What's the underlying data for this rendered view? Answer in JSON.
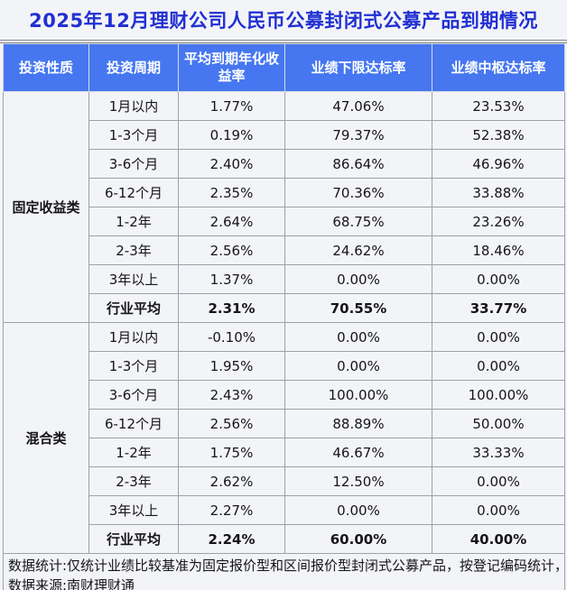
{
  "colors": {
    "page_bg": "#f3f4f8",
    "title_color": "#2130d2",
    "header_bg": "#4677f0",
    "header_text": "#ffffff",
    "cell_text": "#15151a"
  },
  "title": {
    "text": "2025年12月理财公司人民币公募封闭式公募产品到期情况"
  },
  "table": {
    "columns": [
      "投资性质",
      "投资周期",
      "平均到期年化收益率",
      "业绩下限达标率",
      "业绩中枢达标率"
    ],
    "sections": [
      {
        "category": "固定收益类",
        "rows": [
          {
            "period": "1月以内",
            "avg_yield": "1.77%",
            "lower_rate": "47.06%",
            "mid_rate": "23.53%",
            "bold": false
          },
          {
            "period": "1-3个月",
            "avg_yield": "0.19%",
            "lower_rate": "79.37%",
            "mid_rate": "52.38%",
            "bold": false
          },
          {
            "period": "3-6个月",
            "avg_yield": "2.40%",
            "lower_rate": "86.64%",
            "mid_rate": "46.96%",
            "bold": false
          },
          {
            "period": "6-12个月",
            "avg_yield": "2.35%",
            "lower_rate": "70.36%",
            "mid_rate": "33.88%",
            "bold": false
          },
          {
            "period": "1-2年",
            "avg_yield": "2.64%",
            "lower_rate": "68.75%",
            "mid_rate": "23.26%",
            "bold": false
          },
          {
            "period": "2-3年",
            "avg_yield": "2.56%",
            "lower_rate": "24.62%",
            "mid_rate": "18.46%",
            "bold": false
          },
          {
            "period": "3年以上",
            "avg_yield": "1.37%",
            "lower_rate": "0.00%",
            "mid_rate": "0.00%",
            "bold": false
          },
          {
            "period": "行业平均",
            "avg_yield": "2.31%",
            "lower_rate": "70.55%",
            "mid_rate": "33.77%",
            "bold": true
          }
        ]
      },
      {
        "category": "混合类",
        "rows": [
          {
            "period": "1月以内",
            "avg_yield": "-0.10%",
            "lower_rate": "0.00%",
            "mid_rate": "0.00%",
            "bold": false
          },
          {
            "period": "1-3个月",
            "avg_yield": "1.95%",
            "lower_rate": "0.00%",
            "mid_rate": "0.00%",
            "bold": false
          },
          {
            "period": "3-6个月",
            "avg_yield": "2.43%",
            "lower_rate": "100.00%",
            "mid_rate": "100.00%",
            "bold": false
          },
          {
            "period": "6-12个月",
            "avg_yield": "2.56%",
            "lower_rate": "88.89%",
            "mid_rate": "50.00%",
            "bold": false
          },
          {
            "period": "1-2年",
            "avg_yield": "1.75%",
            "lower_rate": "46.67%",
            "mid_rate": "33.33%",
            "bold": false
          },
          {
            "period": "2-3年",
            "avg_yield": "2.62%",
            "lower_rate": "12.50%",
            "mid_rate": "0.00%",
            "bold": false
          },
          {
            "period": "3年以上",
            "avg_yield": "2.27%",
            "lower_rate": "0.00%",
            "mid_rate": "0.00%",
            "bold": false
          },
          {
            "period": "行业平均",
            "avg_yield": "2.24%",
            "lower_rate": "60.00%",
            "mid_rate": "40.00%",
            "bold": true
          }
        ]
      }
    ]
  },
  "footer": {
    "line1": "数据统计:仅统计业绩比较基准为固定报价型和区间报价型封闭式公募产品，按登记编码统计，",
    "line2": "数据来源:南财理财通"
  },
  "chart_data": {
    "type": "table",
    "title": "2025年12月理财公司人民币公募封闭式公募产品到期情况",
    "columns": [
      "投资性质",
      "投资周期",
      "平均到期年化收益率",
      "业绩下限达标率",
      "业绩中枢达标率"
    ],
    "rows": [
      [
        "固定收益类",
        "1月以内",
        "1.77%",
        "47.06%",
        "23.53%"
      ],
      [
        "固定收益类",
        "1-3个月",
        "0.19%",
        "79.37%",
        "52.38%"
      ],
      [
        "固定收益类",
        "3-6个月",
        "2.40%",
        "86.64%",
        "46.96%"
      ],
      [
        "固定收益类",
        "6-12个月",
        "2.35%",
        "70.36%",
        "33.88%"
      ],
      [
        "固定收益类",
        "1-2年",
        "2.64%",
        "68.75%",
        "23.26%"
      ],
      [
        "固定收益类",
        "2-3年",
        "2.56%",
        "24.62%",
        "18.46%"
      ],
      [
        "固定收益类",
        "3年以上",
        "1.37%",
        "0.00%",
        "0.00%"
      ],
      [
        "固定收益类",
        "行业平均",
        "2.31%",
        "70.55%",
        "33.77%"
      ],
      [
        "混合类",
        "1月以内",
        "-0.10%",
        "0.00%",
        "0.00%"
      ],
      [
        "混合类",
        "1-3个月",
        "1.95%",
        "0.00%",
        "0.00%"
      ],
      [
        "混合类",
        "3-6个月",
        "2.43%",
        "100.00%",
        "100.00%"
      ],
      [
        "混合类",
        "6-12个月",
        "2.56%",
        "88.89%",
        "50.00%"
      ],
      [
        "混合类",
        "1-2年",
        "1.75%",
        "46.67%",
        "33.33%"
      ],
      [
        "混合类",
        "2-3年",
        "2.62%",
        "12.50%",
        "0.00%"
      ],
      [
        "混合类",
        "3年以上",
        "2.27%",
        "0.00%",
        "0.00%"
      ],
      [
        "混合类",
        "行业平均",
        "2.24%",
        "60.00%",
        "40.00%"
      ]
    ],
    "notes": [
      "数据统计:仅统计业绩比较基准为固定报价型和区间报价型封闭式公募产品，按登记编码统计，",
      "数据来源:南财理财通"
    ]
  }
}
